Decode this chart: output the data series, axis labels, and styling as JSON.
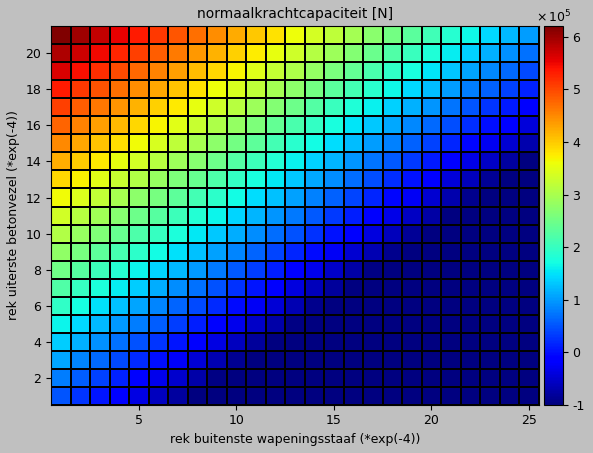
{
  "title": "normaalkrachtcapaciteit [N]",
  "xlabel": "rek buitenste wapeningsstaaf (*exp(-4))",
  "ylabel": "rek uiterste betonvezel (*exp(-4))",
  "x_min": 1,
  "x_max": 25,
  "y_min": 1,
  "y_max": 21,
  "nx": 25,
  "ny": 21,
  "vmin": -100000,
  "vmax": 620000,
  "colorbar_ticks": [
    -1,
    0,
    1,
    2,
    3,
    4,
    5,
    6
  ],
  "colorbar_scale": 100000,
  "bg_color": "#c0c0c0",
  "cmap": "jet",
  "figsize": [
    5.93,
    4.53
  ],
  "dpi": 100,
  "xticks": [
    5,
    10,
    15,
    20,
    25
  ],
  "yticks": [
    2,
    4,
    6,
    8,
    10,
    12,
    14,
    16,
    18,
    20
  ],
  "a_coeff": 28500,
  "b_coeff": 25000,
  "c_coeff": -25000
}
